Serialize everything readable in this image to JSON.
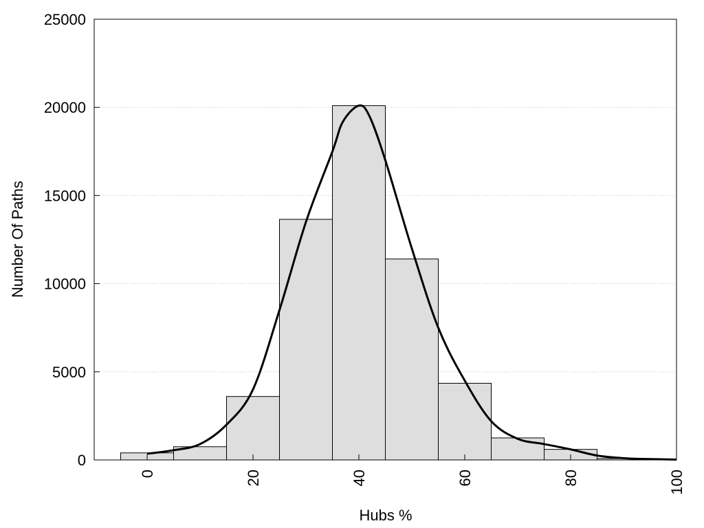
{
  "chart_data": {
    "type": "bar",
    "title": "",
    "xlabel": "Hubs %",
    "ylabel": "Number Of Paths",
    "xlim": [
      -10,
      100
    ],
    "ylim": [
      0,
      25000
    ],
    "xticks": [
      "0",
      "20",
      "40",
      "60",
      "80",
      "100"
    ],
    "yticks": [
      "0",
      "5000",
      "10000",
      "15000",
      "20000",
      "25000"
    ],
    "grid": "horizontal dotted",
    "legend": "none",
    "bin_width": 10,
    "bins": [
      {
        "center": 0,
        "count": 400
      },
      {
        "center": 10,
        "count": 750
      },
      {
        "center": 20,
        "count": 3600
      },
      {
        "center": 30,
        "count": 13650
      },
      {
        "center": 40,
        "count": 20100
      },
      {
        "center": 50,
        "count": 11400
      },
      {
        "center": 60,
        "count": 4350
      },
      {
        "center": 70,
        "count": 1250
      },
      {
        "center": 80,
        "count": 600
      },
      {
        "center": 90,
        "count": 80
      }
    ],
    "density_curve": {
      "x": [
        0,
        5,
        10,
        15,
        20,
        25,
        30,
        35,
        37,
        40,
        42,
        45,
        50,
        55,
        60,
        65,
        70,
        75,
        80,
        85,
        90,
        95,
        100
      ],
      "y": [
        350,
        550,
        900,
        2000,
        4000,
        8500,
        13500,
        17500,
        19200,
        20100,
        19500,
        17000,
        12000,
        7500,
        4500,
        2200,
        1200,
        900,
        600,
        250,
        100,
        50,
        20
      ]
    },
    "colors": {
      "bar_fill": "#dedede",
      "bar_stroke": "#000000",
      "curve": "#000000",
      "grid": "#bbbbbb"
    }
  }
}
